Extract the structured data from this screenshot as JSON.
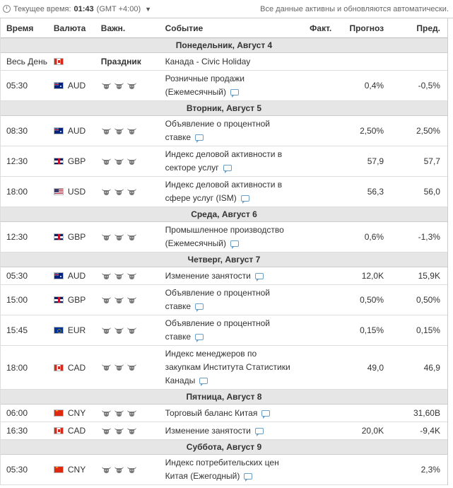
{
  "topbar": {
    "time_label": "Текущее время:",
    "time": "01:43",
    "tz": "(GMT +4:00)",
    "status": "Все данные активны и обновляются автоматически."
  },
  "headers": {
    "time": "Время",
    "currency": "Валюта",
    "importance": "Важн.",
    "event": "Событие",
    "actual": "Факт.",
    "forecast": "Прогноз",
    "previous": "Пред."
  },
  "days": [
    {
      "label": "Понедельник, Август 4",
      "events": [
        {
          "time": "Весь День",
          "flag": "ca",
          "currency": "",
          "importance": 0,
          "importance_text": "Праздник",
          "event": "Канада - Civic Holiday",
          "comment": false,
          "actual": "",
          "forecast": "",
          "previous": "",
          "h": 25
        },
        {
          "time": "05:30",
          "flag": "au",
          "currency": "AUD",
          "importance": 3,
          "event": "Розничные продажи (Ежемесячный)",
          "comment": true,
          "actual": "",
          "forecast": "0,4%",
          "previous": "-0,5%",
          "h": 43
        }
      ]
    },
    {
      "label": "Вторник, Август 5",
      "events": [
        {
          "time": "08:30",
          "flag": "au",
          "currency": "AUD",
          "importance": 3,
          "event": "Объявление о процентной ставке",
          "comment": true,
          "actual": "",
          "forecast": "2,50%",
          "previous": "2,50%",
          "h": 43
        },
        {
          "time": "12:30",
          "flag": "gb",
          "currency": "GBP",
          "importance": 3,
          "event": "Индекс деловой активности в секторе услуг",
          "comment": true,
          "actual": "",
          "forecast": "57,9",
          "previous": "57,7",
          "h": 43
        },
        {
          "time": "18:00",
          "flag": "us",
          "currency": "USD",
          "importance": 3,
          "event": "Индекс деловой активности в сфере услуг (ISM)",
          "comment": true,
          "actual": "",
          "forecast": "56,3",
          "previous": "56,0",
          "h": 43
        }
      ]
    },
    {
      "label": "Среда, Август 6",
      "events": [
        {
          "time": "12:30",
          "flag": "gb",
          "currency": "GBP",
          "importance": 3,
          "event": "Промышленное производство (Ежемесячный)",
          "comment": true,
          "actual": "",
          "forecast": "0,6%",
          "previous": "-1,3%",
          "h": 43
        }
      ]
    },
    {
      "label": "Четверг, Август 7",
      "events": [
        {
          "time": "05:30",
          "flag": "au",
          "currency": "AUD",
          "importance": 3,
          "event": "Изменение занятости",
          "comment": true,
          "actual": "",
          "forecast": "12,0K",
          "previous": "15,9K",
          "h": 25
        },
        {
          "time": "15:00",
          "flag": "gb",
          "currency": "GBP",
          "importance": 3,
          "event": "Объявление о процентной ставке",
          "comment": true,
          "actual": "",
          "forecast": "0,50%",
          "previous": "0,50%",
          "h": 43
        },
        {
          "time": "15:45",
          "flag": "eu",
          "currency": "EUR",
          "importance": 3,
          "event": "Объявление о процентной ставке",
          "comment": true,
          "actual": "",
          "forecast": "0,15%",
          "previous": "0,15%",
          "h": 43
        },
        {
          "time": "18:00",
          "flag": "ca",
          "currency": "CAD",
          "importance": 3,
          "event": "Индекс менеджеров по закупкам Института Статистики Канады",
          "comment": true,
          "actual": "",
          "forecast": "49,0",
          "previous": "46,9",
          "h": 62
        }
      ]
    },
    {
      "label": "Пятница, Август 8",
      "events": [
        {
          "time": "06:00",
          "flag": "cn",
          "currency": "CNY",
          "importance": 3,
          "event": "Торговый баланс Китая",
          "comment": true,
          "actual": "",
          "forecast": "",
          "previous": "31,60B",
          "h": 25
        },
        {
          "time": "16:30",
          "flag": "ca",
          "currency": "CAD",
          "importance": 3,
          "event": "Изменение занятости",
          "comment": true,
          "actual": "",
          "forecast": "20,0K",
          "previous": "-9,4K",
          "h": 25
        }
      ]
    },
    {
      "label": "Суббота, Август 9",
      "events": [
        {
          "time": "05:30",
          "flag": "cn",
          "currency": "CNY",
          "importance": 3,
          "event": "Индекс потребительских цен Китая (Ежегодный)",
          "comment": true,
          "actual": "",
          "forecast": "",
          "previous": "2,3%",
          "h": 43
        }
      ]
    }
  ]
}
